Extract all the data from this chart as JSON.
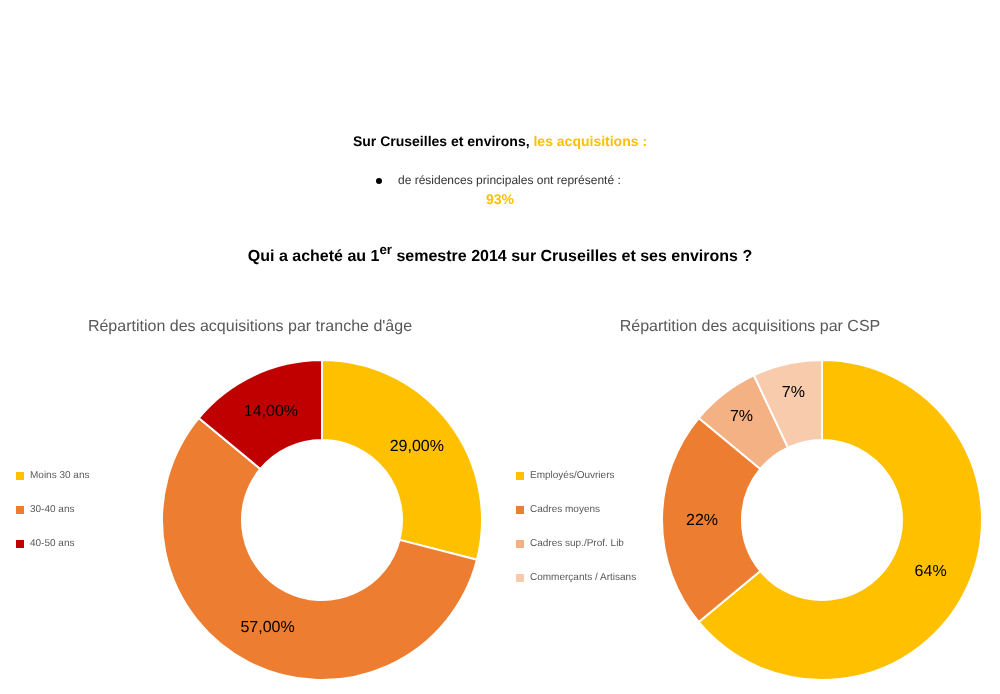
{
  "chart_data": [
    {
      "type": "other",
      "annotations": [
        "Sur Cruseilles et environs,",
        "les acquisitions :",
        "de résidences principales ont représenté :",
        "93%",
        "Qui a acheté au 1$^{er}$ semestre 2014 sur Cruseilles et ses environs ?"
      ]
    },
    {
      "type": "donut",
      "title": "Répartition des acquisitions par tranche d'âge",
      "categories": [
        "Moins 30 ans",
        "30-40 ans",
        "40-50 ans"
      ],
      "values": [
        29,
        57,
        14
      ],
      "colors": [
        "#ffc000",
        "#ed7d31",
        "#c00000"
      ],
      "value_labels": [
        "29,00%",
        "57,00%",
        "14,00%"
      ],
      "legend": "left"
    },
    {
      "type": "donut",
      "title": "Répartition des acquisitions par CSP",
      "categories": [
        "Employés/Ouvriers",
        "Cadres moyens",
        "Cadres sup./Prof. Lib",
        "Commerçants / Artisans"
      ],
      "values": [
        64,
        22,
        7,
        7
      ],
      "colors": [
        "#ffc000",
        "#ed7d31",
        "#f4b183",
        "#f8cbad"
      ],
      "value_labels": [
        "64%",
        "22%",
        "7%",
        "7%"
      ],
      "legend": "left"
    }
  ]
}
